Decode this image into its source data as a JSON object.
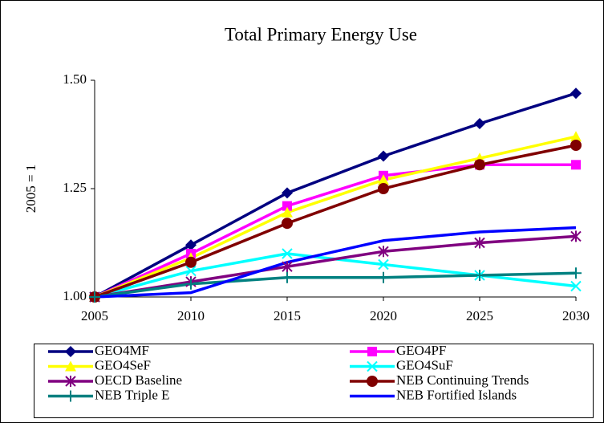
{
  "chart_data": {
    "type": "line",
    "title": "Total Primary Energy Use",
    "ylabel": "2005 = 1",
    "x": [
      2005,
      2010,
      2015,
      2020,
      2025,
      2030
    ],
    "xlim": [
      2005,
      2030
    ],
    "xticks": [
      2005,
      2010,
      2015,
      2020,
      2025,
      2030
    ],
    "ylim": [
      1.0,
      1.5
    ],
    "yticks": [
      {
        "value": 1.0,
        "label": "1.00"
      },
      {
        "value": 1.25,
        "label": "1.25"
      },
      {
        "value": 1.5,
        "label": "1.50"
      }
    ],
    "series": [
      {
        "name": "GEO4MF",
        "color": "#000080",
        "marker": "diamond",
        "values": [
          1.0,
          1.12,
          1.24,
          1.325,
          1.4,
          1.47
        ]
      },
      {
        "name": "GEO4PF",
        "color": "#ff00ff",
        "marker": "square",
        "values": [
          1.0,
          1.1,
          1.21,
          1.28,
          1.305,
          1.305
        ]
      },
      {
        "name": "GEO4SeF",
        "color": "#ffff00",
        "marker": "triangle",
        "values": [
          1.0,
          1.09,
          1.195,
          1.27,
          1.32,
          1.37
        ]
      },
      {
        "name": "GEO4SuF",
        "color": "#00ffff",
        "marker": "x",
        "values": [
          1.0,
          1.06,
          1.1,
          1.075,
          1.05,
          1.025
        ]
      },
      {
        "name": "OECD Baseline",
        "color": "#800080",
        "marker": "star",
        "values": [
          1.0,
          1.035,
          1.07,
          1.105,
          1.125,
          1.14
        ]
      },
      {
        "name": "NEB Continuing Trends",
        "color": "#800000",
        "marker": "circle",
        "values": [
          1.0,
          1.08,
          1.17,
          1.25,
          1.305,
          1.35
        ]
      },
      {
        "name": "NEB Triple E",
        "color": "#008080",
        "marker": "plus",
        "values": [
          1.0,
          1.03,
          1.045,
          1.045,
          1.05,
          1.055
        ]
      },
      {
        "name": "NEB Fortified Islands",
        "color": "#0000ff",
        "marker": "none",
        "values": [
          1.0,
          1.01,
          1.08,
          1.13,
          1.15,
          1.16
        ]
      }
    ]
  }
}
